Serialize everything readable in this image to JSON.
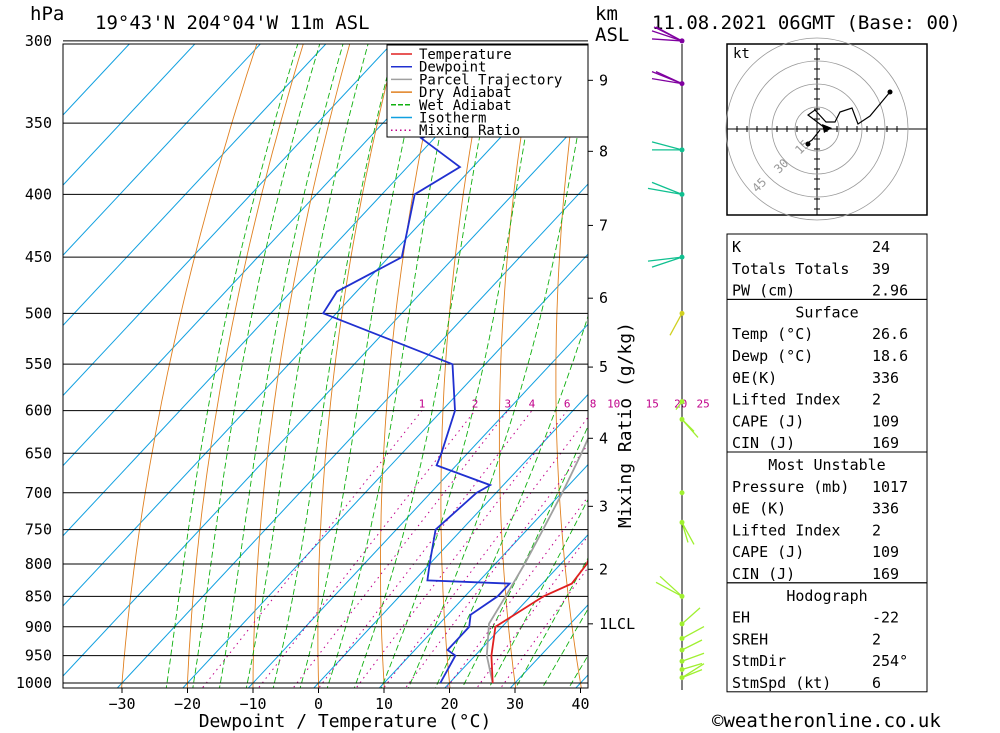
{
  "header": {
    "location": "19°43'N 204°04'W 11m ASL",
    "datetime": "11.08.2021 06GMT (Base: 00)",
    "pressure_unit": "hPa",
    "km_label": "km",
    "asl_label": "ASL",
    "kt_label": "kt"
  },
  "footer": {
    "copyright": "©weatheronline.co.uk"
  },
  "legend": [
    {
      "label": "Temperature",
      "color": "#e02020"
    },
    {
      "label": "Dewpoint",
      "color": "#2030d0"
    },
    {
      "label": "Parcel Trajectory",
      "color": "#a0a0a0"
    },
    {
      "label": "Dry Adiabat",
      "color": "#e08020"
    },
    {
      "label": "Wet Adiabat",
      "color": "#10b010"
    },
    {
      "label": "Isotherm",
      "color": "#10a0e0"
    },
    {
      "label": "Mixing Ratio",
      "color": "#c0008a"
    }
  ],
  "chart_data": {
    "type": "line",
    "xlabel": "Dewpoint / Temperature (°C)",
    "ylabel": "hPa",
    "right_axis_label": "Mixing Ratio (g/kg)",
    "xlim": [
      -40,
      40
    ],
    "ylim": [
      1000,
      300
    ],
    "x_ticks": [
      -30,
      -20,
      -10,
      0,
      10,
      20,
      30,
      40
    ],
    "pressure_ticks": [
      300,
      350,
      400,
      450,
      500,
      550,
      600,
      650,
      700,
      750,
      800,
      850,
      900,
      950,
      1000
    ],
    "height_ticks_km": [
      {
        "p": 895,
        "label": "1LCL"
      },
      {
        "p": 808,
        "label": "2"
      },
      {
        "p": 718,
        "label": "3"
      },
      {
        "p": 632,
        "label": "4"
      },
      {
        "p": 553,
        "label": "5"
      },
      {
        "p": 486,
        "label": "6"
      },
      {
        "p": 424,
        "label": "7"
      },
      {
        "p": 369,
        "label": "8"
      },
      {
        "p": 323,
        "label": "9"
      }
    ],
    "mixing_ratio_labels": [
      "1",
      "2",
      "3",
      "4",
      "6",
      "8",
      "10",
      "15",
      "20",
      "25"
    ],
    "series": [
      {
        "name": "Temperature",
        "color": "#e02020",
        "points": [
          [
            1000,
            26.6
          ],
          [
            950,
            22.5
          ],
          [
            900,
            19
          ],
          [
            850,
            22
          ],
          [
            830,
            24.5
          ],
          [
            800,
            24
          ],
          [
            750,
            21
          ],
          [
            700,
            17.5
          ],
          [
            650,
            14.5
          ],
          [
            600,
            10.5
          ],
          [
            550,
            6
          ],
          [
            500,
            2.5
          ],
          [
            450,
            -3
          ],
          [
            400,
            -10
          ],
          [
            350,
            -19
          ],
          [
            300,
            -31
          ]
        ]
      },
      {
        "name": "Dewpoint",
        "color": "#2030d0",
        "points": [
          [
            1000,
            18.6
          ],
          [
            950,
            17
          ],
          [
            940,
            15
          ],
          [
            900,
            15
          ],
          [
            880,
            13.5
          ],
          [
            850,
            15
          ],
          [
            830,
            15
          ],
          [
            825,
            2
          ],
          [
            800,
            0
          ],
          [
            750,
            -4
          ],
          [
            700,
            -3
          ],
          [
            690,
            -2
          ],
          [
            665,
            -13
          ],
          [
            650,
            -14
          ],
          [
            600,
            -18
          ],
          [
            550,
            -25
          ],
          [
            500,
            -52
          ],
          [
            480,
            -53
          ],
          [
            450,
            -48
          ],
          [
            400,
            -55
          ],
          [
            380,
            -52
          ],
          [
            360,
            -62
          ],
          [
            350,
            -58
          ],
          [
            310,
            -65
          ],
          [
            300,
            -70
          ]
        ]
      },
      {
        "name": "Parcel Trajectory",
        "color": "#a0a0a0",
        "points": [
          [
            1000,
            26.6
          ],
          [
            950,
            21.8
          ],
          [
            895,
            17.6
          ],
          [
            850,
            16.2
          ],
          [
            800,
            14.5
          ],
          [
            750,
            12.4
          ],
          [
            700,
            10.1
          ],
          [
            650,
            7.4
          ],
          [
            600,
            4.2
          ],
          [
            550,
            0.5
          ],
          [
            500,
            -3.9
          ],
          [
            450,
            -9.2
          ],
          [
            400,
            -15.7
          ],
          [
            350,
            -23.5
          ],
          [
            300,
            -33
          ]
        ]
      }
    ]
  },
  "wind_profile_colors": [
    "#a0f030",
    "#d0d020",
    "#10c090",
    "#8000a0"
  ],
  "hodograph": {
    "rings": [
      "15",
      "30",
      "45"
    ]
  },
  "indices": {
    "rows": [
      {
        "label": "K",
        "value": "24"
      },
      {
        "label": "Totals Totals",
        "value": "39"
      },
      {
        "label": "PW (cm)",
        "value": "2.96"
      }
    ]
  },
  "surface": {
    "title": "Surface",
    "rows": [
      {
        "label": "Temp (°C)",
        "value": "26.6"
      },
      {
        "label": "Dewp (°C)",
        "value": "18.6"
      },
      {
        "label": "θE(K)",
        "value": "336"
      },
      {
        "label": "Lifted Index",
        "value": "2"
      },
      {
        "label": "CAPE (J)",
        "value": "109"
      },
      {
        "label": "CIN (J)",
        "value": "169"
      }
    ]
  },
  "most_unstable": {
    "title": "Most Unstable",
    "rows": [
      {
        "label": "Pressure (mb)",
        "value": "1017"
      },
      {
        "label": "θE (K)",
        "value": "336"
      },
      {
        "label": "Lifted Index",
        "value": "2"
      },
      {
        "label": "CAPE (J)",
        "value": "109"
      },
      {
        "label": "CIN (J)",
        "value": "169"
      }
    ]
  },
  "hodograph_params": {
    "title": "Hodograph",
    "rows": [
      {
        "label": "EH",
        "value": "-22"
      },
      {
        "label": "SREH",
        "value": "2"
      },
      {
        "label": "StmDir",
        "value": "254°"
      },
      {
        "label": "StmSpd (kt)",
        "value": "6"
      }
    ]
  }
}
